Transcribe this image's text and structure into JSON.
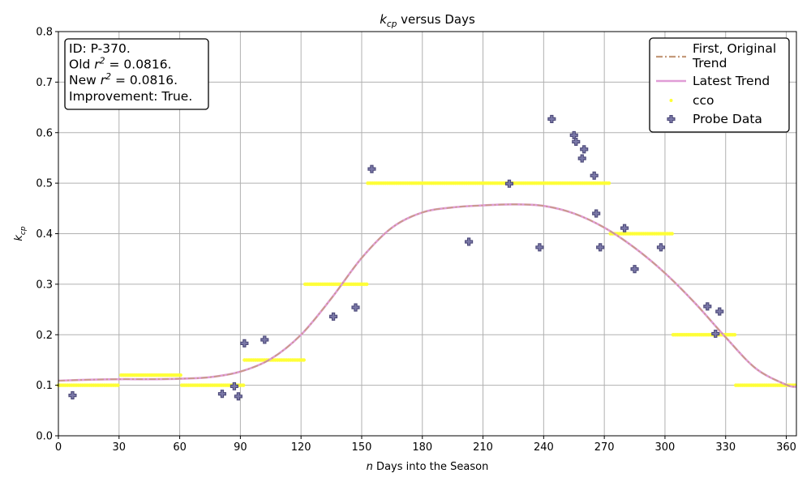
{
  "chart_data": {
    "type": "scatter",
    "title": "k_cp versus Days",
    "xlabel": "n Days into the Season",
    "ylabel": "k_cp",
    "xlim": [
      0,
      365
    ],
    "ylim": [
      0.0,
      0.8
    ],
    "xticks": [
      0,
      30,
      60,
      90,
      120,
      150,
      180,
      210,
      240,
      270,
      300,
      330,
      360
    ],
    "yticks": [
      0.0,
      0.1,
      0.2,
      0.3,
      0.4,
      0.5,
      0.6,
      0.7,
      0.8
    ],
    "grid": true,
    "legend_position": "top-right",
    "info_box": {
      "position": "top-left",
      "lines": [
        "ID: P-370.",
        "Old r^2 = 0.0816.",
        "New r^2 = 0.0816.",
        "Improvement: True."
      ]
    },
    "series": [
      {
        "name": "First, Original Trend",
        "kind": "line",
        "style": "dashdot",
        "color": "#c49a7a",
        "x": [
          0,
          15,
          30,
          45,
          60,
          75,
          90,
          105,
          120,
          135,
          150,
          165,
          180,
          195,
          210,
          225,
          240,
          255,
          270,
          285,
          300,
          315,
          330,
          345,
          360,
          365
        ],
        "y": [
          0.109,
          0.111,
          0.112,
          0.112,
          0.113,
          0.116,
          0.127,
          0.152,
          0.2,
          0.272,
          0.352,
          0.412,
          0.442,
          0.452,
          0.456,
          0.458,
          0.455,
          0.44,
          0.412,
          0.372,
          0.322,
          0.262,
          0.195,
          0.133,
          0.101,
          0.097
        ]
      },
      {
        "name": "Latest Trend",
        "kind": "line",
        "style": "solid",
        "color": "#e09cd6",
        "x": [
          0,
          15,
          30,
          45,
          60,
          75,
          90,
          105,
          120,
          135,
          150,
          165,
          180,
          195,
          210,
          225,
          240,
          255,
          270,
          285,
          300,
          315,
          330,
          345,
          360,
          365
        ],
        "y": [
          0.109,
          0.111,
          0.112,
          0.112,
          0.113,
          0.116,
          0.127,
          0.152,
          0.2,
          0.272,
          0.352,
          0.412,
          0.442,
          0.452,
          0.456,
          0.458,
          0.455,
          0.44,
          0.412,
          0.372,
          0.322,
          0.262,
          0.195,
          0.133,
          0.101,
          0.097
        ]
      },
      {
        "name": "cco",
        "kind": "steps",
        "color": "#ffff33",
        "segments": [
          {
            "x0": 0,
            "x1": 30,
            "y": 0.1
          },
          {
            "x0": 31,
            "x1": 61,
            "y": 0.12
          },
          {
            "x0": 61,
            "x1": 92,
            "y": 0.1
          },
          {
            "x0": 92,
            "x1": 122,
            "y": 0.15
          },
          {
            "x0": 122,
            "x1": 153,
            "y": 0.3
          },
          {
            "x0": 153,
            "x1": 273,
            "y": 0.5
          },
          {
            "x0": 273,
            "x1": 304,
            "y": 0.4
          },
          {
            "x0": 304,
            "x1": 335,
            "y": 0.2
          },
          {
            "x0": 335,
            "x1": 365,
            "y": 0.1
          }
        ]
      },
      {
        "name": "Probe Data",
        "kind": "scatter",
        "marker": "plus",
        "color": "#4b4878",
        "points": [
          [
            7,
            0.08
          ],
          [
            81,
            0.083
          ],
          [
            87,
            0.098
          ],
          [
            89,
            0.078
          ],
          [
            92,
            0.183
          ],
          [
            102,
            0.19
          ],
          [
            136,
            0.236
          ],
          [
            147,
            0.254
          ],
          [
            155,
            0.528
          ],
          [
            203,
            0.384
          ],
          [
            223,
            0.499
          ],
          [
            238,
            0.373
          ],
          [
            244,
            0.627
          ],
          [
            255,
            0.595
          ],
          [
            256,
            0.582
          ],
          [
            259,
            0.549
          ],
          [
            260,
            0.567
          ],
          [
            265,
            0.515
          ],
          [
            266,
            0.44
          ],
          [
            268,
            0.373
          ],
          [
            280,
            0.411
          ],
          [
            285,
            0.33
          ],
          [
            298,
            0.373
          ],
          [
            321,
            0.256
          ],
          [
            325,
            0.202
          ],
          [
            327,
            0.246
          ]
        ]
      }
    ]
  }
}
